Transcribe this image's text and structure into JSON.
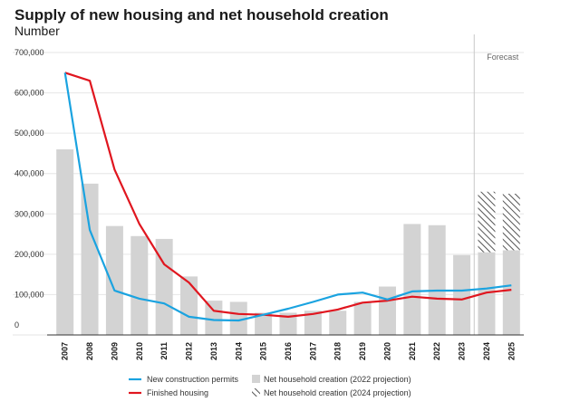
{
  "chart_data": {
    "type": "bar",
    "title": "Supply of new housing and net household creation",
    "subtitle": "Number",
    "x": [
      "2007",
      "2008",
      "2009",
      "2010",
      "2011",
      "2012",
      "2013",
      "2014",
      "2015",
      "2016",
      "2017",
      "2018",
      "2019",
      "2020",
      "2021",
      "2022",
      "2023",
      "2024",
      "2025"
    ],
    "ylim": [
      0,
      700000
    ],
    "yticks": [
      {
        "value": 0,
        "label": "0"
      },
      {
        "value": 100000,
        "label": "100,000"
      },
      {
        "value": 200000,
        "label": "200,000"
      },
      {
        "value": 300000,
        "label": "300,000"
      },
      {
        "value": 400000,
        "label": "400,000"
      },
      {
        "value": 500000,
        "label": "500,000"
      },
      {
        "value": 600000,
        "label": "600,000"
      },
      {
        "value": 700000,
        "label": "700,000"
      }
    ],
    "grid": true,
    "forecast_label": "Forecast",
    "forecast_start_index": 17,
    "bars": [
      {
        "name": "Net household creation (2022 projection)",
        "color": "#d3d3d3",
        "values": [
          460000,
          375000,
          270000,
          245000,
          238000,
          145000,
          85000,
          82000,
          55000,
          55000,
          60000,
          60000,
          82000,
          120000,
          275000,
          272000,
          198000,
          205000,
          210000
        ]
      },
      {
        "name": "Net household creation (2024 projection)",
        "pattern": "hatched",
        "values": [
          null,
          null,
          null,
          null,
          null,
          null,
          null,
          null,
          null,
          null,
          null,
          null,
          null,
          null,
          null,
          null,
          null,
          355000,
          350000
        ]
      }
    ],
    "series": [
      {
        "name": "New construction permits",
        "color": "#1aa3e0",
        "values": [
          650000,
          260000,
          110000,
          90000,
          78000,
          45000,
          37000,
          36000,
          50000,
          65000,
          82000,
          100000,
          105000,
          88000,
          108000,
          110000,
          110000,
          115000,
          123000
        ]
      },
      {
        "name": "Finished housing",
        "color": "#e0161f",
        "values": [
          650000,
          630000,
          410000,
          275000,
          175000,
          130000,
          60000,
          52000,
          50000,
          45000,
          52000,
          63000,
          80000,
          85000,
          95000,
          90000,
          88000,
          105000,
          112000
        ]
      }
    ],
    "legend": {
      "placement": "bottom",
      "items": [
        {
          "label": "New construction permits",
          "kind": "line",
          "color": "#1aa3e0"
        },
        {
          "label": "Net household creation (2022 projection)",
          "kind": "bar",
          "color": "#d3d3d3"
        },
        {
          "label": "Finished housing",
          "kind": "line",
          "color": "#e0161f"
        },
        {
          "label": "Net household creation (2024 projection)",
          "kind": "hatched",
          "color": "#555555"
        }
      ]
    }
  }
}
